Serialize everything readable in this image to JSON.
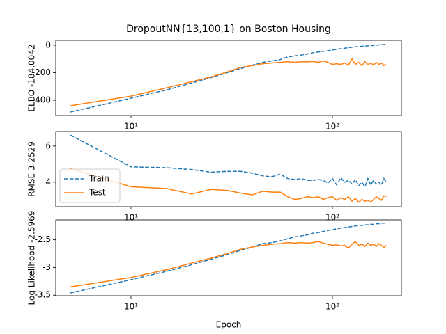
{
  "chart_data": [
    {
      "type": "line",
      "title": "DropoutNN{13,100,1} on Boston Housing",
      "y_label": "ELBO -184.0042",
      "x": [
        5,
        10,
        15,
        20,
        25,
        30,
        35,
        40,
        45,
        50,
        55,
        60,
        65,
        70,
        75,
        80,
        85,
        90,
        95,
        100,
        105,
        110,
        115,
        120,
        125,
        130,
        135,
        140,
        145,
        150,
        155,
        160,
        165,
        170,
        175,
        180,
        185
      ],
      "xscale": "log",
      "xlim": [
        4.23,
        220
      ],
      "xticks": [
        {
          "value": 10,
          "label": "10¹"
        },
        {
          "value": 100,
          "label": "10²"
        }
      ],
      "ylim": [
        -511,
        35
      ],
      "yticks": [
        -400,
        -200,
        0
      ],
      "series": [
        {
          "color": "#1f77b4",
          "linestyle": "dashed",
          "values": [
            -486,
            -385,
            -325,
            -275,
            -235,
            -200,
            -170,
            -145,
            -125,
            -115,
            -105,
            -85,
            -78,
            -72,
            -65,
            -55,
            -50,
            -45,
            -40,
            -35,
            -30,
            -25,
            -22,
            -18,
            -15,
            -12,
            -10,
            -8,
            -6,
            -5,
            -3,
            -2,
            0,
            2,
            3,
            5,
            8
          ]
        },
        {
          "color": "#ff7f0e",
          "linestyle": "solid",
          "values": [
            -440,
            -370,
            -310,
            -265,
            -230,
            -195,
            -162,
            -148,
            -135,
            -130,
            -125,
            -120,
            -125,
            -120,
            -122,
            -118,
            -125,
            -115,
            -125,
            -140,
            -135,
            -140,
            -130,
            -145,
            -100,
            -140,
            -125,
            -150,
            -120,
            -140,
            -130,
            -145,
            -125,
            -140,
            -130,
            -150,
            -140
          ]
        }
      ]
    },
    {
      "type": "line",
      "y_label": "RMSE 3.2529",
      "x": [
        5,
        10,
        15,
        20,
        25,
        30,
        35,
        40,
        45,
        50,
        55,
        60,
        65,
        70,
        75,
        80,
        85,
        90,
        95,
        100,
        105,
        110,
        115,
        120,
        125,
        130,
        135,
        140,
        145,
        150,
        155,
        160,
        165,
        170,
        175,
        180,
        185
      ],
      "xscale": "log",
      "xlim": [
        4.23,
        220
      ],
      "xticks": [
        {
          "value": 10,
          "label": "10¹"
        },
        {
          "value": 100,
          "label": "10²"
        }
      ],
      "ylim": [
        2.65,
        6.8
      ],
      "yticks": [
        4,
        6
      ],
      "legend": "lower left",
      "series": [
        {
          "name": "Train",
          "color": "#1f77b4",
          "linestyle": "dashed",
          "values": [
            6.6,
            4.85,
            4.8,
            4.7,
            4.55,
            4.6,
            4.6,
            4.5,
            4.35,
            4.3,
            4.45,
            4.2,
            4.15,
            4.2,
            4.1,
            4.1,
            4.15,
            4.1,
            3.95,
            4.2,
            3.85,
            4.25,
            4.0,
            4.1,
            3.9,
            4.15,
            3.8,
            4.0,
            3.75,
            4.2,
            3.85,
            4.1,
            3.9,
            4.0,
            3.85,
            4.2,
            4.0
          ]
        },
        {
          "name": "Test",
          "color": "#ff7f0e",
          "linestyle": "solid",
          "values": [
            4.75,
            3.75,
            3.65,
            3.35,
            3.6,
            3.55,
            3.4,
            3.3,
            3.5,
            3.45,
            3.45,
            3.2,
            3.05,
            3.1,
            3.2,
            3.15,
            3.2,
            3.05,
            3.15,
            3.2,
            3.0,
            3.15,
            3.05,
            3.2,
            2.95,
            3.1,
            2.9,
            3.05,
            2.95,
            3.0,
            2.9,
            3.05,
            3.2,
            3.1,
            3.0,
            3.25,
            3.2
          ]
        }
      ]
    },
    {
      "type": "line",
      "y_label": "Log Likelihood -2.5969",
      "x_label": "Epoch",
      "x": [
        5,
        10,
        15,
        20,
        25,
        30,
        35,
        40,
        45,
        50,
        55,
        60,
        65,
        70,
        75,
        80,
        85,
        90,
        95,
        100,
        105,
        110,
        115,
        120,
        125,
        130,
        135,
        140,
        145,
        150,
        155,
        160,
        165,
        170,
        175,
        180,
        185
      ],
      "xscale": "log",
      "xlim": [
        4.23,
        220
      ],
      "xticks": [
        {
          "value": 10,
          "label": "10¹"
        },
        {
          "value": 100,
          "label": "10²"
        }
      ],
      "ylim": [
        -3.51,
        -2.14
      ],
      "yticks": [
        -3.5,
        -3.0,
        -2.5
      ],
      "series": [
        {
          "color": "#1f77b4",
          "linestyle": "dashed",
          "values": [
            -3.46,
            -3.22,
            -3.07,
            -2.95,
            -2.85,
            -2.77,
            -2.69,
            -2.63,
            -2.57,
            -2.55,
            -2.52,
            -2.48,
            -2.45,
            -2.43,
            -2.41,
            -2.38,
            -2.37,
            -2.35,
            -2.33,
            -2.32,
            -2.3,
            -2.29,
            -2.28,
            -2.27,
            -2.26,
            -2.25,
            -2.24,
            -2.24,
            -2.23,
            -2.23,
            -2.22,
            -2.22,
            -2.21,
            -2.21,
            -2.2,
            -2.2,
            -2.2
          ]
        },
        {
          "color": "#ff7f0e",
          "linestyle": "solid",
          "values": [
            -3.35,
            -3.18,
            -3.04,
            -2.92,
            -2.83,
            -2.75,
            -2.67,
            -2.63,
            -2.6,
            -2.58,
            -2.57,
            -2.55,
            -2.56,
            -2.55,
            -2.56,
            -2.55,
            -2.53,
            -2.56,
            -2.58,
            -2.6,
            -2.59,
            -2.61,
            -2.6,
            -2.65,
            -2.58,
            -2.53,
            -2.6,
            -2.58,
            -2.62,
            -2.56,
            -2.6,
            -2.58,
            -2.62,
            -2.57,
            -2.6,
            -2.64,
            -2.6
          ]
        }
      ]
    }
  ]
}
